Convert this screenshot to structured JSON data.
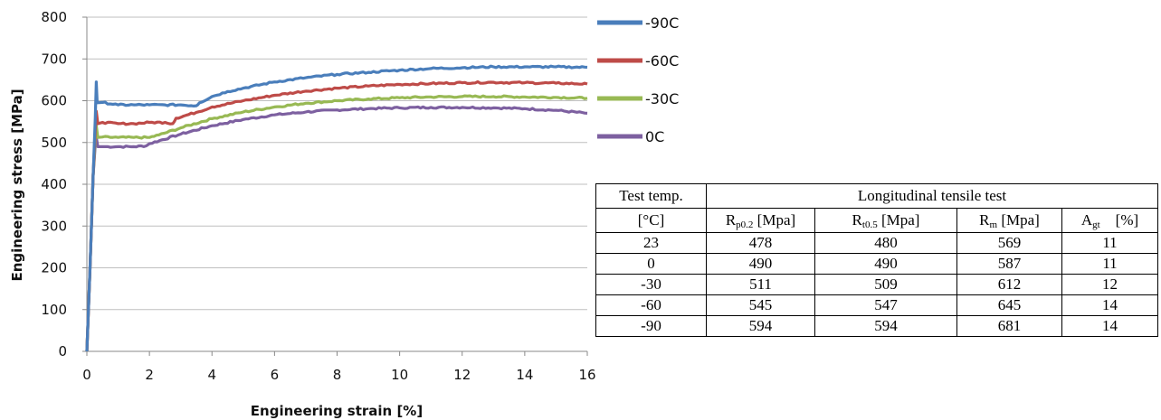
{
  "chart_data": {
    "type": "line",
    "xlabel": "Engineering strain [%]",
    "ylabel": "Engineering stress [MPa]",
    "xlim": [
      0,
      16
    ],
    "ylim": [
      0,
      800
    ],
    "xticks": [
      0,
      2,
      4,
      6,
      8,
      10,
      12,
      14,
      16
    ],
    "yticks": [
      0,
      100,
      200,
      300,
      400,
      500,
      600,
      700,
      800
    ],
    "grid": "horizontal",
    "legend_position": "right",
    "series": [
      {
        "name": "-90C",
        "color": "#4a7ebb",
        "points": [
          [
            0,
            0
          ],
          [
            0.1,
            200
          ],
          [
            0.2,
            420
          ],
          [
            0.27,
            560
          ],
          [
            0.3,
            645
          ],
          [
            0.33,
            595
          ],
          [
            0.5,
            596
          ],
          [
            1,
            590
          ],
          [
            1.5,
            590
          ],
          [
            2,
            590
          ],
          [
            2.5,
            590
          ],
          [
            3,
            590
          ],
          [
            3.5,
            588
          ],
          [
            3.6,
            595
          ],
          [
            4,
            610
          ],
          [
            4.5,
            622
          ],
          [
            5,
            630
          ],
          [
            6,
            645
          ],
          [
            7,
            655
          ],
          [
            8,
            663
          ],
          [
            9,
            668
          ],
          [
            10,
            673
          ],
          [
            11,
            677
          ],
          [
            12,
            679
          ],
          [
            13,
            681
          ],
          [
            14,
            681
          ],
          [
            15,
            681
          ],
          [
            16,
            680
          ]
        ]
      },
      {
        "name": "-60C",
        "color": "#be4b48",
        "points": [
          [
            0,
            0
          ],
          [
            0.1,
            200
          ],
          [
            0.2,
            420
          ],
          [
            0.27,
            530
          ],
          [
            0.3,
            575
          ],
          [
            0.35,
            545
          ],
          [
            0.5,
            548
          ],
          [
            1,
            545
          ],
          [
            1.5,
            545
          ],
          [
            2,
            548
          ],
          [
            2.5,
            548
          ],
          [
            2.75,
            545
          ],
          [
            2.85,
            558
          ],
          [
            3.5,
            572
          ],
          [
            4,
            585
          ],
          [
            5,
            600
          ],
          [
            6,
            613
          ],
          [
            7,
            623
          ],
          [
            8,
            630
          ],
          [
            9,
            635
          ],
          [
            10,
            639
          ],
          [
            11,
            641
          ],
          [
            12,
            643
          ],
          [
            13,
            644
          ],
          [
            14,
            643
          ],
          [
            15,
            642
          ],
          [
            16,
            640
          ]
        ]
      },
      {
        "name": "-30C",
        "color": "#98b954",
        "points": [
          [
            0,
            0
          ],
          [
            0.1,
            200
          ],
          [
            0.2,
            420
          ],
          [
            0.27,
            510
          ],
          [
            0.3,
            540
          ],
          [
            0.35,
            512
          ],
          [
            0.5,
            513
          ],
          [
            1,
            512
          ],
          [
            1.5,
            512
          ],
          [
            2,
            512
          ],
          [
            2.3,
            518
          ],
          [
            3,
            535
          ],
          [
            4,
            557
          ],
          [
            5,
            573
          ],
          [
            6,
            585
          ],
          [
            7,
            594
          ],
          [
            8,
            600
          ],
          [
            9,
            604
          ],
          [
            10,
            607
          ],
          [
            11,
            609
          ],
          [
            12,
            610
          ],
          [
            13,
            610
          ],
          [
            14,
            609
          ],
          [
            15,
            608
          ],
          [
            16,
            606
          ]
        ]
      },
      {
        "name": "0C",
        "color": "#7d60a0",
        "points": [
          [
            0,
            0
          ],
          [
            0.1,
            200
          ],
          [
            0.2,
            420
          ],
          [
            0.27,
            495
          ],
          [
            0.3,
            512
          ],
          [
            0.35,
            490
          ],
          [
            0.5,
            490
          ],
          [
            1,
            490
          ],
          [
            1.5,
            490
          ],
          [
            1.9,
            492
          ],
          [
            2,
            497
          ],
          [
            3,
            520
          ],
          [
            4,
            540
          ],
          [
            5,
            555
          ],
          [
            6,
            566
          ],
          [
            7,
            573
          ],
          [
            8,
            578
          ],
          [
            9,
            581
          ],
          [
            10,
            583
          ],
          [
            11,
            584
          ],
          [
            12,
            584
          ],
          [
            13,
            583
          ],
          [
            14,
            581
          ],
          [
            15,
            577
          ],
          [
            16,
            570
          ]
        ]
      }
    ]
  },
  "table": {
    "header_col1": [
      "Test temp.",
      "[°C]"
    ],
    "header_group": "Longitudinal tensile test",
    "sub_headers": [
      {
        "main": "R",
        "sub": "p0.2",
        "unit": " [Mpa]"
      },
      {
        "main": "R",
        "sub": "t0.5",
        "unit": " [Mpa]"
      },
      {
        "main": "R",
        "sub": "m",
        "unit": " [Mpa]"
      },
      {
        "main": "A",
        "sub": "gt",
        "unit": "    [%]"
      }
    ],
    "rows": [
      [
        "23",
        "478",
        "480",
        "569",
        "11"
      ],
      [
        "0",
        "490",
        "490",
        "587",
        "11"
      ],
      [
        "-30",
        "511",
        "509",
        "612",
        "12"
      ],
      [
        "-60",
        "545",
        "547",
        "645",
        "14"
      ],
      [
        "-90",
        "594",
        "594",
        "681",
        "14"
      ]
    ]
  }
}
